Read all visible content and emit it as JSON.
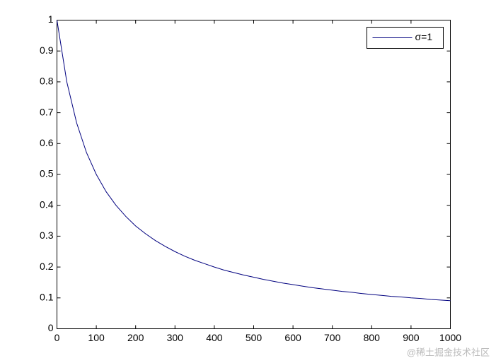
{
  "chart_data": {
    "type": "line",
    "x": [
      0,
      25,
      50,
      75,
      100,
      125,
      150,
      175,
      200,
      225,
      250,
      275,
      300,
      325,
      350,
      375,
      400,
      425,
      450,
      475,
      500,
      525,
      550,
      575,
      600,
      625,
      650,
      675,
      700,
      725,
      750,
      775,
      800,
      825,
      850,
      875,
      900,
      925,
      950,
      975,
      1000
    ],
    "series": [
      {
        "name": "σ=1",
        "color": "#00007f",
        "values": [
          1,
          0.8,
          0.667,
          0.571,
          0.5,
          0.444,
          0.4,
          0.364,
          0.333,
          0.308,
          0.286,
          0.267,
          0.25,
          0.235,
          0.222,
          0.211,
          0.2,
          0.19,
          0.182,
          0.174,
          0.167,
          0.16,
          0.154,
          0.148,
          0.143,
          0.138,
          0.133,
          0.129,
          0.125,
          0.121,
          0.118,
          0.114,
          0.111,
          0.108,
          0.105,
          0.103,
          0.1,
          0.098,
          0.095,
          0.093,
          0.091
        ]
      }
    ],
    "xlim": [
      0,
      1000
    ],
    "xticks": [
      0,
      100,
      200,
      300,
      400,
      500,
      600,
      700,
      800,
      900,
      1000
    ],
    "ylim": [
      0,
      1
    ],
    "yticks": [
      0,
      0.1,
      0.2,
      0.3,
      0.4,
      0.5,
      0.6,
      0.7,
      0.8,
      0.9,
      1
    ],
    "legend": "northeast",
    "watermark": "@稀土掘金技术社区"
  }
}
